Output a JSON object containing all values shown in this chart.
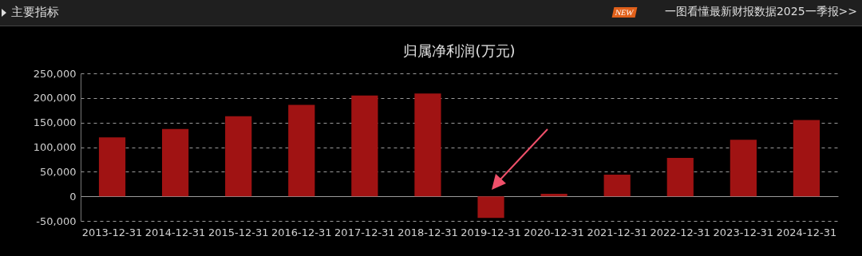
{
  "chart_data": {
    "type": "bar",
    "title": "归属净利润(万元)",
    "categories": [
      "2013-12-31",
      "2014-12-31",
      "2015-12-31",
      "2016-12-31",
      "2017-12-31",
      "2018-12-31",
      "2019-12-31",
      "2020-12-31",
      "2021-12-31",
      "2022-12-31",
      "2023-12-31",
      "2024-12-31"
    ],
    "values": [
      120000,
      137000,
      163000,
      186000,
      205000,
      209000,
      -44000,
      5000,
      44000,
      78000,
      115000,
      155000
    ],
    "color": "#a01313",
    "ylim": [
      -50000,
      250000
    ],
    "yticks": [
      {
        "value": -50000,
        "label": "-50,000"
      },
      0,
      {
        "value": 50000,
        "label": "50,000"
      },
      {
        "value": 100000,
        "label": "100,000"
      },
      {
        "value": 150000,
        "label": "150,000"
      },
      {
        "value": 200000,
        "label": "200,000"
      },
      {
        "value": 250000,
        "label": "250,000"
      }
    ],
    "grid": "y",
    "annotations": [
      "主要指标",
      "NEW",
      "一图看懂最新财报数据2025一季报>>"
    ]
  }
}
